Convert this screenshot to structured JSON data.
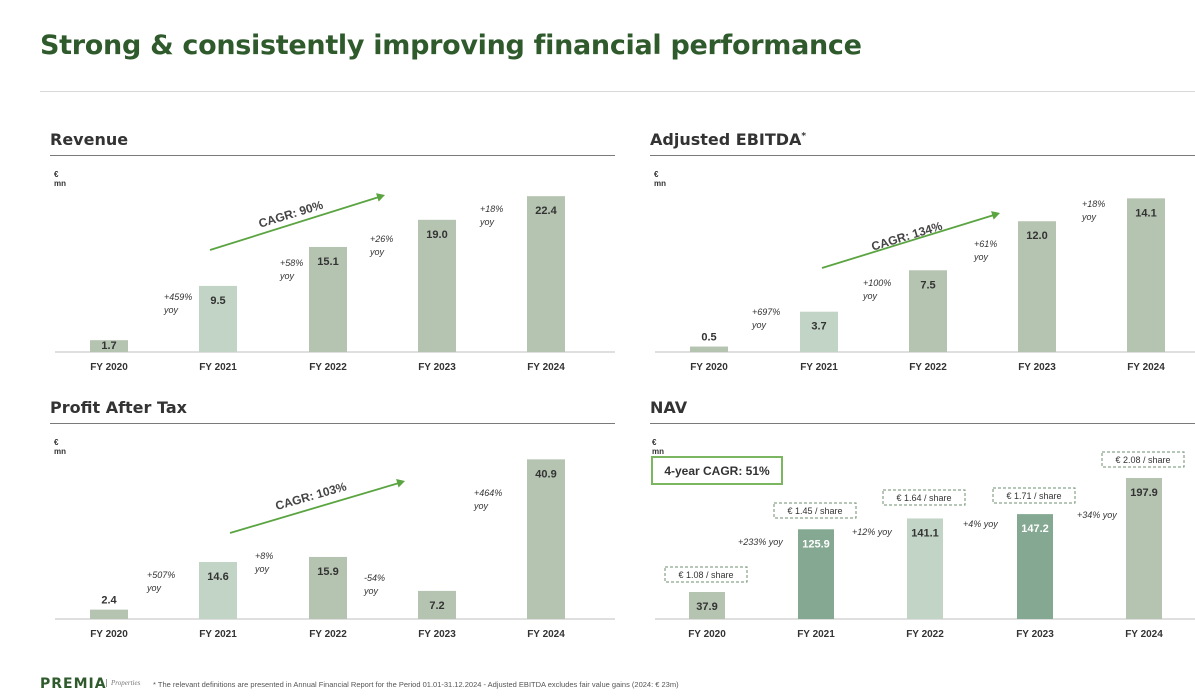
{
  "page": {
    "title": "Strong & consistently improving financial performance",
    "footer": {
      "logo": "PREMIA",
      "logo_sub": "Properties",
      "note": "* The relevant definitions are presented in Annual Financial Report for the Period 01.01-31.12.2024  -  Adjusted EBITDA excludes fair value gains (2024: € 23m)"
    }
  },
  "colors": {
    "title_green": "#2f5a2c",
    "arrow_green": "#5aa441",
    "bar_light": "#c2d4c5",
    "bar_mid": "#b5c3b1",
    "bar_dark": "#84a891",
    "box_green": "#7bb661"
  },
  "chart_data": [
    {
      "id": "revenue",
      "type": "bar",
      "title": "Revenue",
      "unit": "€ mn",
      "categories": [
        "FY 2020",
        "FY 2021",
        "FY 2022",
        "FY 2023",
        "FY 2024"
      ],
      "values": [
        1.7,
        9.5,
        15.1,
        19.0,
        22.4
      ],
      "labels": [
        "1.7",
        "9.5",
        "15.1",
        "19.0",
        "22.4"
      ],
      "yoy": [
        "+459%",
        "+58%",
        "+26%",
        "+18%"
      ],
      "yoy_suffix": "yoy",
      "cagr": "CAGR: 90%",
      "ylim": [
        0,
        23
      ]
    },
    {
      "id": "ebitda",
      "type": "bar",
      "title": "Adjusted EBITDA",
      "title_sup": "*",
      "unit": "€ mn",
      "categories": [
        "FY 2020",
        "FY 2021",
        "FY 2022",
        "FY 2023",
        "FY 2024"
      ],
      "values": [
        0.5,
        3.7,
        7.5,
        12.0,
        14.1
      ],
      "labels": [
        "0.5",
        "3.7",
        "7.5",
        "12.0",
        "14.1"
      ],
      "yoy": [
        "+697%",
        "+100%",
        "+61%",
        "+18%"
      ],
      "yoy_suffix": "yoy",
      "cagr": "CAGR: 134%",
      "ylim": [
        0,
        14.5
      ]
    },
    {
      "id": "pat",
      "type": "bar",
      "title": "Profit After Tax",
      "unit": "€ mn",
      "categories": [
        "FY 2020",
        "FY 2021",
        "FY 2022",
        "FY 2023",
        "FY 2024"
      ],
      "values": [
        2.4,
        14.6,
        15.9,
        7.2,
        40.9
      ],
      "labels": [
        "2.4",
        "14.6",
        "15.9",
        "7.2",
        "40.9"
      ],
      "yoy": [
        "+507%",
        "+8%",
        "-54%",
        "+464%"
      ],
      "yoy_suffix": "yoy",
      "cagr": "CAGR: 103%",
      "ylim": [
        0,
        41.5
      ]
    },
    {
      "id": "nav",
      "type": "bar",
      "title": "NAV",
      "unit": "€ mn",
      "categories": [
        "FY 2020",
        "FY 2021",
        "FY 2022",
        "FY 2023",
        "FY 2024"
      ],
      "values": [
        37.9,
        125.9,
        141.1,
        147.2,
        197.9
      ],
      "labels": [
        "37.9",
        "125.9",
        "141.1",
        "147.2",
        "197.9"
      ],
      "per_share": [
        "€ 1.08 / share",
        "€ 1.45 / share",
        "€ 1.64 / share",
        "€ 1.71 / share",
        "€ 2.08 / share"
      ],
      "yoy": [
        "+233% yoy",
        "+12% yoy",
        "+4% yoy",
        "+34% yoy"
      ],
      "cagr": "4-year CAGR: 51%"
    }
  ]
}
